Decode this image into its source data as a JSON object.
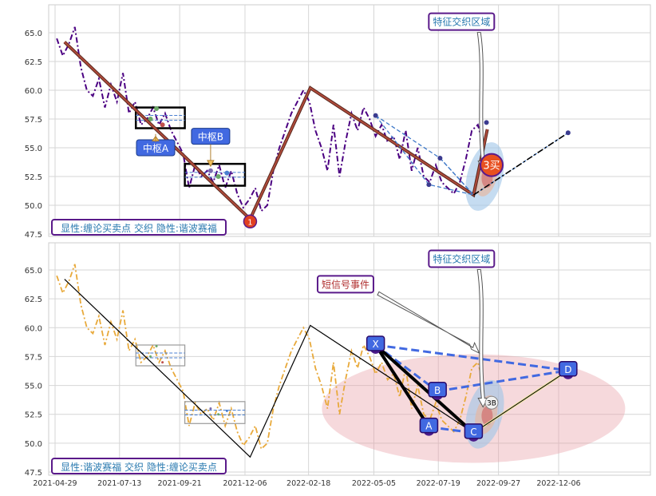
{
  "chart_data": [
    {
      "type": "line",
      "panel": "top",
      "ylim": [
        47.5,
        67.0
      ],
      "yticks": [
        "47.5",
        "50.0",
        "52.5",
        "55.0",
        "57.5",
        "60.0",
        "62.5",
        "65.0"
      ],
      "grid": true,
      "colors": {
        "price": "#4b0082",
        "zigzag_fill": "#b04a3a",
        "pivot": "#000000"
      },
      "price_series": {
        "name": "",
        "x": [
          "2021-05-01",
          "2021-05-08",
          "2021-05-15",
          "2021-05-22",
          "2021-05-29",
          "2021-06-05",
          "2021-06-12",
          "2021-06-19",
          "2021-06-26",
          "2021-07-03",
          "2021-07-10",
          "2021-07-17",
          "2021-07-24",
          "2021-07-31",
          "2021-08-07",
          "2021-08-14",
          "2021-08-21",
          "2021-08-28",
          "2021-09-04",
          "2021-09-11",
          "2021-09-18",
          "2021-09-25",
          "2021-10-02",
          "2021-10-09",
          "2021-10-16",
          "2021-10-23",
          "2021-10-30",
          "2021-11-06",
          "2021-11-13",
          "2021-11-20",
          "2021-11-27",
          "2021-12-04",
          "2021-12-11",
          "2021-12-18",
          "2021-12-25",
          "2022-01-01",
          "2022-01-08",
          "2022-01-15",
          "2022-01-22",
          "2022-01-29",
          "2022-02-05",
          "2022-02-12",
          "2022-02-19",
          "2022-02-26",
          "2022-03-05",
          "2022-03-12",
          "2022-03-19",
          "2022-03-26",
          "2022-04-02",
          "2022-04-09",
          "2022-04-16",
          "2022-04-23",
          "2022-04-30",
          "2022-05-07",
          "2022-05-14",
          "2022-05-21",
          "2022-05-28",
          "2022-06-04",
          "2022-06-11",
          "2022-06-18",
          "2022-06-25",
          "2022-07-02",
          "2022-07-09",
          "2022-07-16",
          "2022-07-23",
          "2022-07-30",
          "2022-08-06",
          "2022-08-13",
          "2022-08-20",
          "2022-08-27",
          "2022-09-03",
          "2022-09-10"
        ],
        "y": [
          64.5,
          63.0,
          64.0,
          65.5,
          62.0,
          60.0,
          59.5,
          61.0,
          58.5,
          60.5,
          59.0,
          61.5,
          58.0,
          59.0,
          57.0,
          57.5,
          58.5,
          57.0,
          58.0,
          56.5,
          55.5,
          54.5,
          51.5,
          53.5,
          52.5,
          53.0,
          52.0,
          53.5,
          51.5,
          53.0,
          51.0,
          49.8,
          50.5,
          51.5,
          49.5,
          50.0,
          53.0,
          55.0,
          56.5,
          58.0,
          59.0,
          60.0,
          59.0,
          56.5,
          55.0,
          53.0,
          57.0,
          52.5,
          55.5,
          58.0,
          56.5,
          58.5,
          57.5,
          56.0,
          57.0,
          55.5,
          56.0,
          54.0,
          56.5,
          53.0,
          55.0,
          52.5,
          52.0,
          53.5,
          52.0,
          51.5,
          51.0,
          52.0,
          54.0,
          56.5,
          57.0,
          55.0
        ]
      },
      "zigzag": {
        "x": [
          "2021-05-10",
          "2021-12-12",
          "2022-02-20",
          "2022-08-29",
          "2022-09-14"
        ],
        "y": [
          64.2,
          48.8,
          60.2,
          50.9,
          56.6
        ]
      },
      "pivots": [
        {
          "x0": "2021-08-01",
          "x1": "2021-09-27",
          "y0": 56.7,
          "y1": 58.5
        },
        {
          "x0": "2021-09-27",
          "x1": "2021-12-06",
          "y0": 51.7,
          "y1": 53.6
        }
      ],
      "dashed_lines": [
        {
          "x": [
            "2022-05-07",
            "2022-07-08",
            "2022-08-29"
          ],
          "y": [
            57.8,
            51.8,
            50.9
          ]
        },
        {
          "x": [
            "2022-05-07",
            "2022-07-21",
            "2022-08-29"
          ],
          "y": [
            57.8,
            54.1,
            50.9
          ]
        },
        {
          "x": [
            "2022-07-21",
            "2022-08-29",
            "2022-12-17"
          ],
          "y": [
            54.1,
            50.9,
            56.3
          ]
        }
      ],
      "dashdot_line": {
        "x": [
          "2022-08-29",
          "2022-12-17"
        ],
        "y": [
          50.9,
          56.3
        ]
      },
      "points": [
        {
          "x": "2022-05-07",
          "y": 57.8
        },
        {
          "x": "2022-07-08",
          "y": 51.8
        },
        {
          "x": "2022-07-21",
          "y": 54.1
        },
        {
          "x": "2022-09-13",
          "y": 57.2
        },
        {
          "x": "2022-12-17",
          "y": 56.3
        }
      ],
      "annotations": [
        {
          "text": "中枢A",
          "x": "2021-08-24",
          "y": 55.0
        },
        {
          "text": "中枢B",
          "x": "2021-10-27",
          "y": 56.0
        },
        {
          "text": "特征交织区域",
          "x": "2022-08-15",
          "y": 66.0
        },
        {
          "text": "1",
          "x": "2021-12-12",
          "y": 48.8
        },
        {
          "text": "3买",
          "x": "2022-09-19",
          "y": 53.5
        }
      ],
      "legend_text": "显性:缠论买卖点 交织 隐性:谐波赛福"
    },
    {
      "type": "line",
      "panel": "bottom",
      "ylim": [
        47.0,
        67.0
      ],
      "yticks": [
        "47.5",
        "50.0",
        "52.5",
        "55.0",
        "57.5",
        "60.0",
        "62.5",
        "65.0"
      ],
      "xticks": [
        "2021-04-29",
        "2021-07-13",
        "2021-09-21",
        "2021-12-06",
        "2022-02-18",
        "2022-05-05",
        "2022-07-19",
        "2022-09-27",
        "2022-12-06"
      ],
      "grid": true,
      "colors": {
        "price": "#e8a93a",
        "zigzag": "#000000",
        "pattern": "#4169e1",
        "region": "#e8a0a8"
      },
      "price_series": {
        "name": "",
        "x": [
          "2021-05-01",
          "2021-05-08",
          "2021-05-15",
          "2021-05-22",
          "2021-05-29",
          "2021-06-05",
          "2021-06-12",
          "2021-06-19",
          "2021-06-26",
          "2021-07-03",
          "2021-07-10",
          "2021-07-17",
          "2021-07-24",
          "2021-07-31",
          "2021-08-07",
          "2021-08-14",
          "2021-08-21",
          "2021-08-28",
          "2021-09-04",
          "2021-09-11",
          "2021-09-18",
          "2021-09-25",
          "2021-10-02",
          "2021-10-09",
          "2021-10-16",
          "2021-10-23",
          "2021-10-30",
          "2021-11-06",
          "2021-11-13",
          "2021-11-20",
          "2021-11-27",
          "2021-12-04",
          "2021-12-11",
          "2021-12-18",
          "2021-12-25",
          "2022-01-01",
          "2022-01-08",
          "2022-01-15",
          "2022-01-22",
          "2022-01-29",
          "2022-02-05",
          "2022-02-12",
          "2022-02-19",
          "2022-02-26",
          "2022-03-05",
          "2022-03-12",
          "2022-03-19",
          "2022-03-26",
          "2022-04-02",
          "2022-04-09",
          "2022-04-16",
          "2022-04-23",
          "2022-04-30",
          "2022-05-07",
          "2022-05-14",
          "2022-05-21",
          "2022-05-28",
          "2022-06-04",
          "2022-06-11",
          "2022-06-18",
          "2022-06-25",
          "2022-07-02",
          "2022-07-09",
          "2022-07-16",
          "2022-07-23",
          "2022-07-30",
          "2022-08-06",
          "2022-08-13",
          "2022-08-20",
          "2022-08-27",
          "2022-09-03",
          "2022-09-10"
        ],
        "y": [
          64.5,
          63.0,
          64.0,
          65.5,
          62.0,
          60.0,
          59.5,
          61.0,
          58.5,
          60.5,
          59.0,
          61.5,
          58.0,
          59.0,
          57.0,
          57.5,
          58.5,
          57.0,
          58.0,
          56.5,
          55.5,
          54.5,
          51.5,
          53.5,
          52.5,
          53.0,
          52.0,
          53.5,
          51.5,
          53.0,
          51.0,
          49.8,
          50.5,
          51.5,
          49.5,
          50.0,
          53.0,
          55.0,
          56.5,
          58.0,
          59.0,
          60.0,
          59.0,
          56.5,
          55.0,
          53.0,
          57.0,
          52.5,
          55.5,
          58.0,
          56.5,
          58.5,
          57.5,
          56.0,
          57.0,
          55.5,
          56.0,
          54.0,
          56.5,
          53.0,
          55.0,
          52.5,
          52.0,
          53.5,
          52.0,
          51.5,
          51.0,
          52.0,
          54.0,
          56.5,
          57.0,
          55.0
        ]
      },
      "zigzag": {
        "x": [
          "2021-05-10",
          "2021-12-12",
          "2022-02-20",
          "2022-08-29",
          "2022-12-17"
        ],
        "y": [
          64.2,
          48.8,
          60.2,
          50.9,
          56.3
        ]
      },
      "pivots": [
        {
          "x0": "2021-08-01",
          "x1": "2021-09-27",
          "y0": 56.7,
          "y1": 58.5
        },
        {
          "x0": "2021-09-27",
          "x1": "2021-12-06",
          "y0": 51.7,
          "y1": 53.6
        }
      ],
      "pattern_points": [
        {
          "label": "X",
          "x": "2022-05-07",
          "y": 58.5
        },
        {
          "label": "A",
          "x": "2022-07-08",
          "y": 51.4
        },
        {
          "label": "B",
          "x": "2022-07-18",
          "y": 54.5
        },
        {
          "label": "C",
          "x": "2022-08-29",
          "y": 50.9
        },
        {
          "label": "D",
          "x": "2022-12-17",
          "y": 56.3
        }
      ],
      "annotations": [
        {
          "text": "特征交织区域",
          "x": "2022-08-15",
          "y": 66.0
        },
        {
          "text": "短信号事件",
          "x": "2022-04-02",
          "y": 63.8
        },
        {
          "text": "3B",
          "x": "2022-09-19",
          "y": 53.5
        }
      ],
      "legend_text": "显性:谐波赛福 交织 隐性:缠论买卖点"
    }
  ]
}
